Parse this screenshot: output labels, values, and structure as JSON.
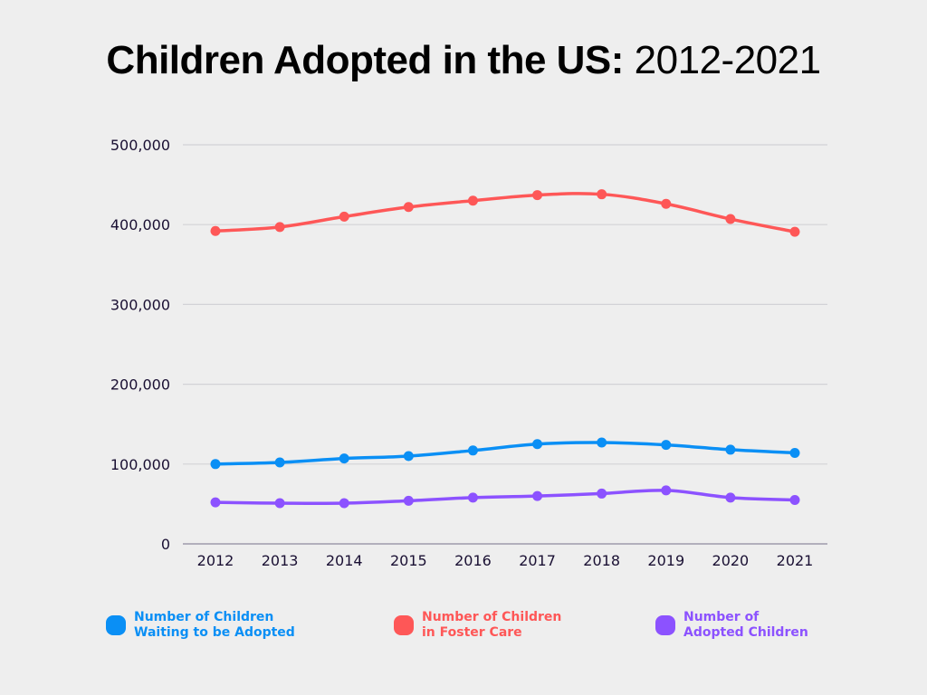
{
  "title": {
    "bold": "Children Adopted in the US:",
    "light": "2012-2021"
  },
  "chart_data": {
    "type": "line",
    "title": "Children Adopted in the US: 2012-2021",
    "xlabel": "",
    "ylabel": "",
    "x": [
      "2012",
      "2013",
      "2014",
      "2015",
      "2016",
      "2017",
      "2018",
      "2019",
      "2020",
      "2021"
    ],
    "ylim": [
      0,
      500000
    ],
    "yticks": [
      0,
      100000,
      200000,
      300000,
      400000,
      500000
    ],
    "ytick_labels": [
      "0",
      "100,000",
      "200,000",
      "300,000",
      "400,000",
      "500,000"
    ],
    "grid": true,
    "legend_position": "bottom",
    "series": [
      {
        "name": "Number of Children Waiting to be Adopted",
        "legend_label": "Number of Children\nWaiting to be Adopted",
        "color": "#0a8ff5",
        "values": [
          100000,
          102000,
          107000,
          110000,
          117000,
          125000,
          127000,
          124000,
          118000,
          114000
        ]
      },
      {
        "name": "Number of Children in Foster Care",
        "legend_label": "Number of Children\nin Foster Care",
        "color": "#fe5757",
        "values": [
          392000,
          397000,
          410000,
          422000,
          430000,
          437000,
          438000,
          426000,
          407000,
          391000
        ]
      },
      {
        "name": "Number of Adopted Children",
        "legend_label": "Number of\nAdopted Children",
        "color": "#8c52ff",
        "values": [
          52000,
          51000,
          51000,
          54000,
          58000,
          60000,
          63000,
          67000,
          58000,
          55000
        ]
      }
    ]
  }
}
